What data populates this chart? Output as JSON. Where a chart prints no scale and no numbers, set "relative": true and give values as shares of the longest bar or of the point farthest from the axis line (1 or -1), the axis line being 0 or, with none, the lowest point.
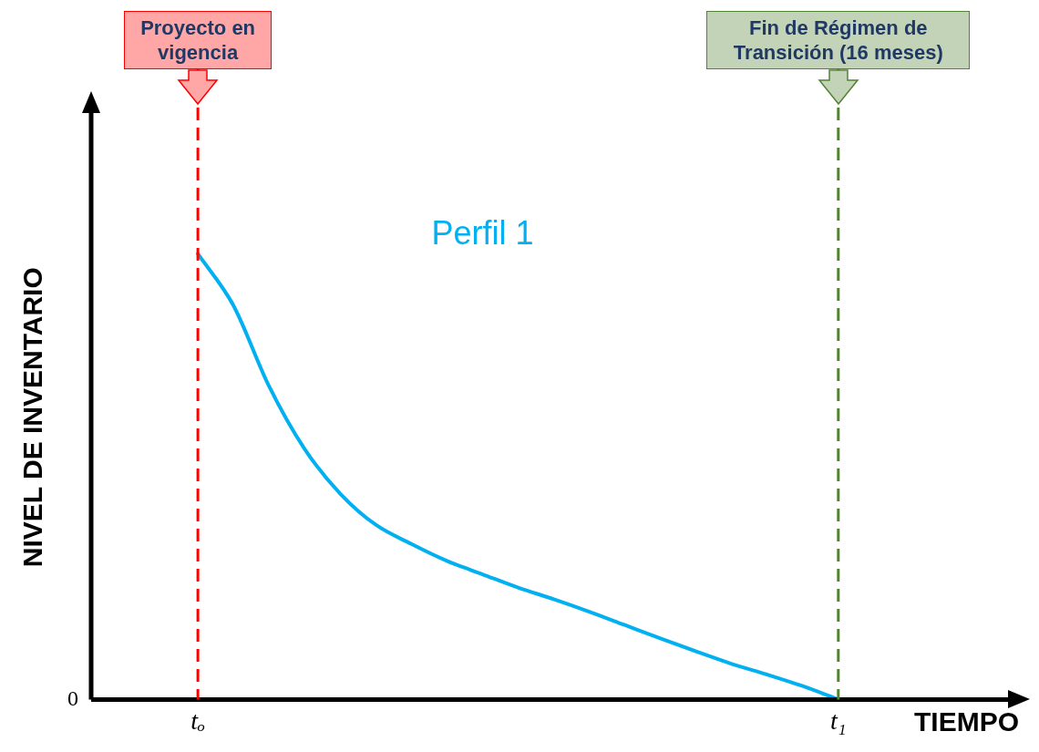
{
  "chart_data": {
    "type": "line",
    "relative": true,
    "marker": "none",
    "ylabel": "NIVEL DE INVENTARIO",
    "xlabel": "TIEMPO",
    "categories": [
      null,
      null,
      null,
      "tₒ",
      null,
      null,
      null,
      null,
      null,
      null,
      null,
      null,
      null,
      null,
      null,
      null,
      null,
      null,
      null,
      null,
      null,
      "t₁",
      null,
      null,
      null,
      null,
      null
    ],
    "series": [
      {
        "name": "Perfil 1",
        "color": "#00b0f0",
        "values": [
          null,
          null,
          null,
          1.0,
          0.884,
          0.703,
          0.562,
          0.462,
          0.392,
          0.349,
          0.311,
          0.281,
          0.251,
          0.225,
          0.197,
          0.167,
          0.137,
          0.108,
          0.08,
          0.056,
          0.03,
          0,
          null,
          null,
          null,
          null,
          null
        ]
      }
    ],
    "ref_lines": [
      {
        "axis": "x",
        "value": "tₒ",
        "label": "Proyecto en vigencia",
        "color": "#ff0000",
        "line_style": "dashed"
      },
      {
        "axis": "x",
        "value": "t₁",
        "label": "Fin de Régimen de Transición (16 meses)",
        "color": "#548235",
        "line_style": "dashed"
      }
    ],
    "annotations": [
      "0"
    ]
  }
}
